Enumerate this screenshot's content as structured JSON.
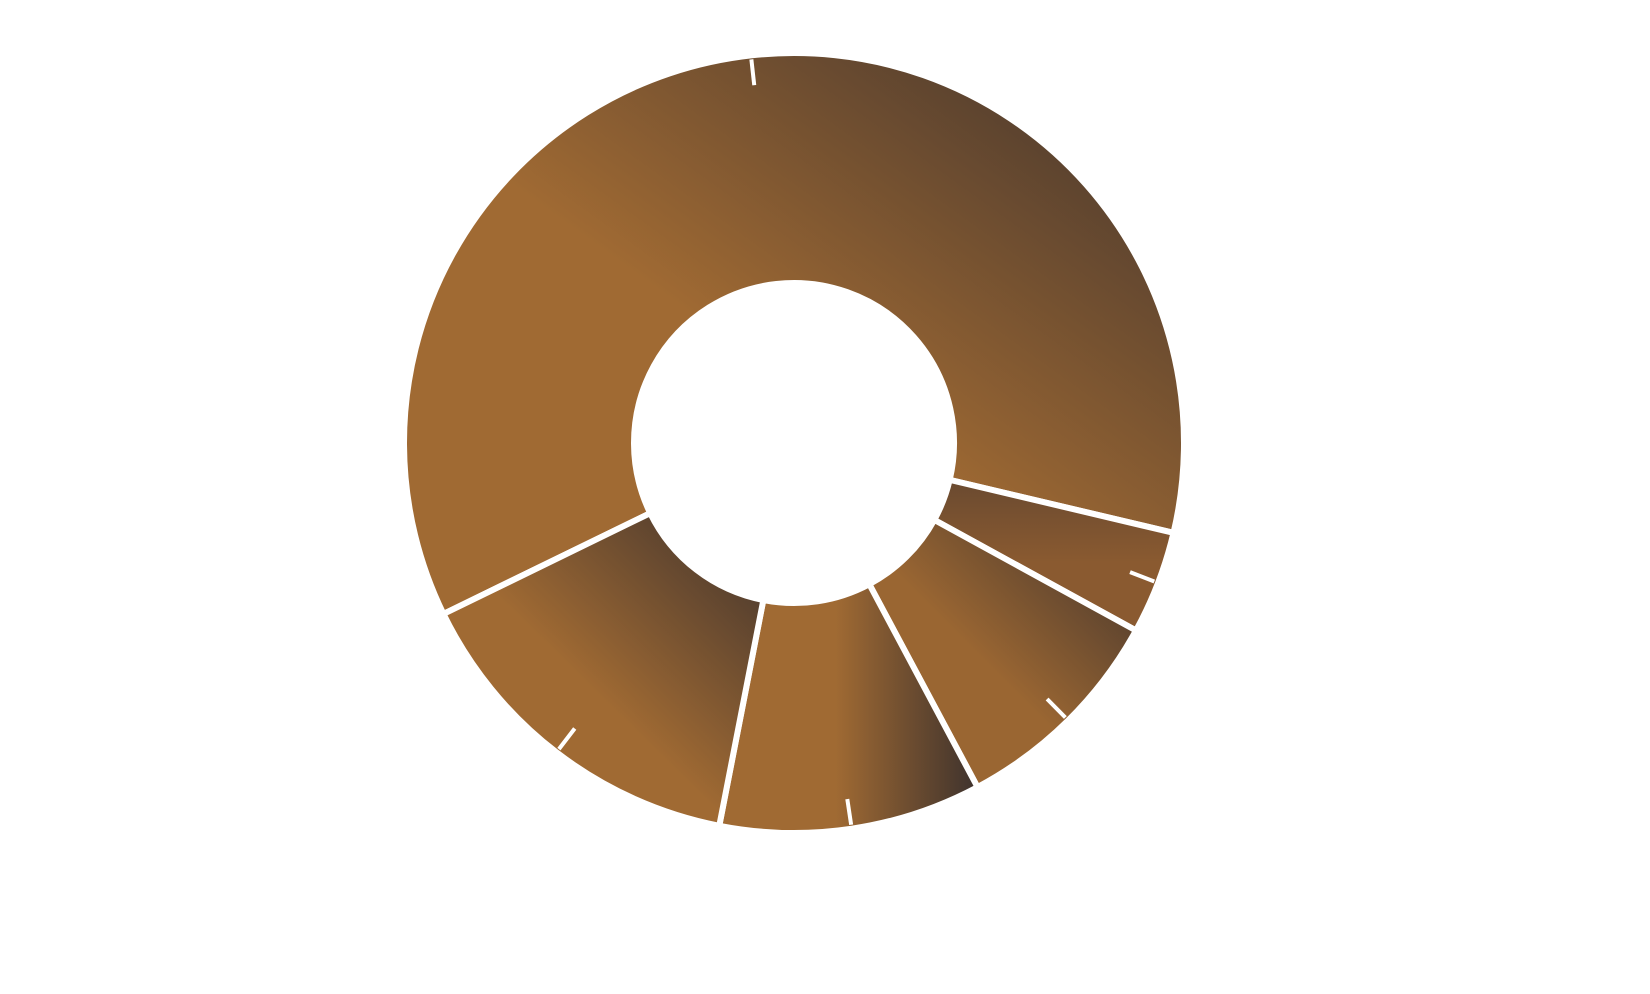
{
  "chart_data": {
    "type": "pie",
    "variant": "donut",
    "slices": [
      {
        "value": 55.5,
        "color_light": "#a06a33",
        "color_dark": "#3e322d",
        "gradient": "diagonal"
      },
      {
        "value": 3.9,
        "color_light": "#8a5a30",
        "color_dark": "#6a4a30",
        "gradient": "vertical"
      },
      {
        "value": 8.4,
        "color_light": "#9a6632",
        "color_dark": "#3e322d",
        "gradient": "diagonal"
      },
      {
        "value": 9.9,
        "color_light": "#a06a33",
        "color_dark": "#3e322d",
        "gradient": "horizontal"
      },
      {
        "value": 13.4,
        "color_light": "#a06a33",
        "color_dark": "#3e322d",
        "gradient": "diagonal"
      }
    ],
    "start_angle_deg": 244,
    "direction": "clockwise-from-top",
    "legend": "none",
    "labels": "none",
    "tick_marks": true,
    "colors": {
      "background": "#ffffff",
      "separator": "#ffffff"
    }
  }
}
